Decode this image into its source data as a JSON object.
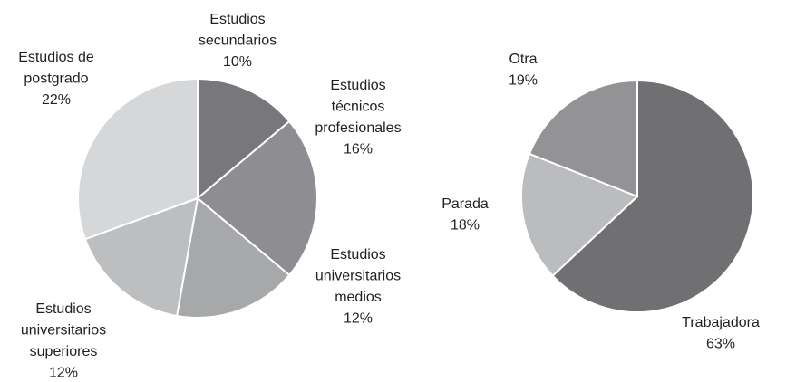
{
  "chart_data": [
    {
      "type": "pie",
      "categories": [
        "Estudios\nsecundarios",
        "Estudios\ntécnicos\nprofesionales",
        "Estudios\nuniversitarios\nmedios",
        "Estudios\nuniversitarios\nsuperiores",
        "Estudios de\npostgrado"
      ],
      "values": [
        10,
        16,
        12,
        12,
        22
      ],
      "value_labels": [
        "10%",
        "16%",
        "12%",
        "12%",
        "22%"
      ],
      "colors": [
        "#78787c",
        "#8e8e92",
        "#a6a8aa",
        "#bdbec0",
        "#d6d7d9"
      ]
    },
    {
      "type": "pie",
      "categories": [
        "Trabajadora",
        "Parada",
        "Otra"
      ],
      "values": [
        63,
        18,
        19
      ],
      "value_labels": [
        "63%",
        "18%",
        "19%"
      ],
      "colors": [
        "#707073",
        "#bbbcbe",
        "#939396"
      ]
    }
  ]
}
